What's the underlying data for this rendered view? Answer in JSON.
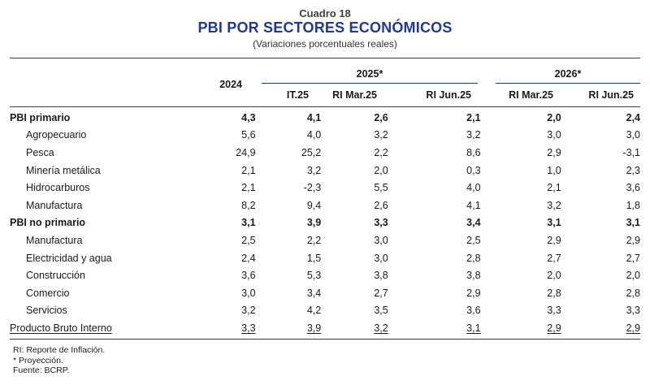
{
  "header": {
    "cuadro": "Cuadro 18",
    "title": "PBI POR SECTORES ECONÓMICOS",
    "subtitle": "(Variaciones porcentuales reales)"
  },
  "columns": {
    "year_2024": "2024",
    "group_2025": "2025*",
    "group_2026": "2026*",
    "c1": "IT.25",
    "c2": "RI Mar.25",
    "c3": "RI Jun.25",
    "c4": "RI Mar.25",
    "c5": "RI Jun.25"
  },
  "rows": [
    {
      "label": "PBI primario",
      "type": "main",
      "values": [
        "4,3",
        "4,1",
        "2,6",
        "2,1",
        "2,0",
        "2,4"
      ]
    },
    {
      "label": "Agropecuario",
      "type": "sub",
      "values": [
        "5,6",
        "4,0",
        "3,2",
        "3,2",
        "3,0",
        "3,0"
      ]
    },
    {
      "label": "Pesca",
      "type": "sub",
      "values": [
        "24,9",
        "25,2",
        "2,2",
        "8,6",
        "2,9",
        "-3,1"
      ]
    },
    {
      "label": "Minería metálica",
      "type": "sub",
      "values": [
        "2,1",
        "3,2",
        "2,0",
        "0,3",
        "1,0",
        "2,3"
      ]
    },
    {
      "label": "Hidrocarburos",
      "type": "sub",
      "values": [
        "2,1",
        "-2,3",
        "5,5",
        "4,0",
        "2,1",
        "3,6"
      ]
    },
    {
      "label": "Manufactura",
      "type": "sub",
      "values": [
        "8,2",
        "9,4",
        "2,6",
        "4,1",
        "3,2",
        "1,8"
      ]
    },
    {
      "label": "PBI no primario",
      "type": "main",
      "values": [
        "3,1",
        "3,9",
        "3,3",
        "3,4",
        "3,1",
        "3,1"
      ]
    },
    {
      "label": "Manufactura",
      "type": "sub",
      "values": [
        "2,5",
        "2,2",
        "3,0",
        "2,5",
        "2,9",
        "2,9"
      ]
    },
    {
      "label": "Electricidad y agua",
      "type": "sub",
      "values": [
        "2,4",
        "1,5",
        "3,0",
        "2,8",
        "2,7",
        "2,7"
      ]
    },
    {
      "label": "Construcción",
      "type": "sub",
      "values": [
        "3,6",
        "5,3",
        "3,8",
        "3,8",
        "2,0",
        "2,0"
      ]
    },
    {
      "label": "Comercio",
      "type": "sub",
      "values": [
        "3,0",
        "3,4",
        "2,7",
        "2,9",
        "2,8",
        "2,8"
      ]
    },
    {
      "label": "Servicios",
      "type": "sub",
      "values": [
        "3,2",
        "4,2",
        "3,5",
        "3,6",
        "3,3",
        "3,3"
      ]
    },
    {
      "label": "Producto Bruto Interno",
      "type": "total",
      "values": [
        "3,3",
        "3,9",
        "3,2",
        "3,1",
        "2,9",
        "2,9"
      ]
    }
  ],
  "notes": {
    "n1": "RI: Reporte de Inflación.",
    "n2": "* Proyección.",
    "n3": "Fuente: BCRP."
  }
}
